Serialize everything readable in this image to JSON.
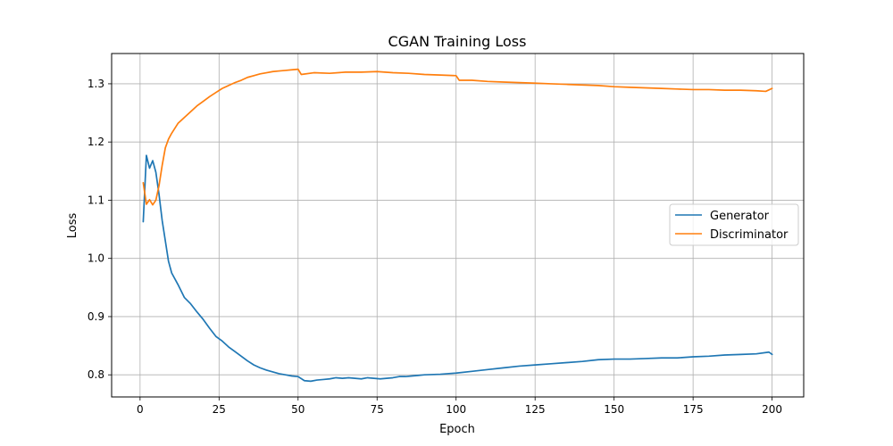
{
  "chart_data": {
    "type": "line",
    "title": "CGAN Training Loss",
    "xlabel": "Epoch",
    "ylabel": "Loss",
    "xlim": [
      -9,
      210
    ],
    "ylim": [
      0.762,
      1.352
    ],
    "xticks": [
      0,
      25,
      50,
      75,
      100,
      125,
      150,
      175,
      200
    ],
    "yticks": [
      0.8,
      0.9,
      1.0,
      1.1,
      1.2,
      1.3
    ],
    "grid": true,
    "legend_position": "center-right",
    "series": [
      {
        "name": "Generator",
        "color": "#1f77b4",
        "x": [
          1,
          2,
          3,
          4,
          5,
          6,
          7,
          8,
          9,
          10,
          12,
          14,
          16,
          18,
          20,
          22,
          24,
          26,
          28,
          30,
          32,
          34,
          36,
          38,
          40,
          42,
          44,
          46,
          48,
          50,
          52,
          54,
          56,
          58,
          60,
          62,
          64,
          66,
          68,
          70,
          72,
          74,
          76,
          78,
          80,
          82,
          84,
          86,
          88,
          90,
          95,
          100,
          105,
          110,
          115,
          120,
          125,
          130,
          135,
          140,
          145,
          150,
          155,
          160,
          165,
          170,
          175,
          180,
          185,
          190,
          195,
          199,
          200
        ],
        "y": [
          1.063,
          1.177,
          1.155,
          1.168,
          1.148,
          1.11,
          1.065,
          1.03,
          0.995,
          0.975,
          0.955,
          0.933,
          0.922,
          0.908,
          0.895,
          0.88,
          0.866,
          0.858,
          0.848,
          0.84,
          0.832,
          0.824,
          0.817,
          0.812,
          0.808,
          0.805,
          0.802,
          0.8,
          0.798,
          0.797,
          0.79,
          0.789,
          0.791,
          0.792,
          0.793,
          0.795,
          0.794,
          0.795,
          0.794,
          0.793,
          0.795,
          0.794,
          0.793,
          0.794,
          0.795,
          0.797,
          0.797,
          0.798,
          0.799,
          0.8,
          0.801,
          0.803,
          0.806,
          0.809,
          0.812,
          0.815,
          0.817,
          0.819,
          0.821,
          0.823,
          0.826,
          0.827,
          0.827,
          0.828,
          0.829,
          0.829,
          0.831,
          0.832,
          0.834,
          0.835,
          0.836,
          0.839,
          0.835
        ]
      },
      {
        "name": "Discriminator",
        "color": "#ff7f0e",
        "x": [
          1,
          2,
          3,
          4,
          5,
          6,
          7,
          8,
          9,
          10,
          12,
          14,
          16,
          18,
          20,
          22,
          24,
          26,
          28,
          30,
          32,
          34,
          36,
          38,
          40,
          42,
          44,
          46,
          48,
          50,
          51,
          55,
          60,
          65,
          70,
          75,
          80,
          85,
          90,
          95,
          100,
          101,
          105,
          110,
          115,
          120,
          125,
          130,
          135,
          140,
          145,
          150,
          155,
          160,
          165,
          170,
          175,
          180,
          185,
          190,
          195,
          198,
          200
        ],
        "y": [
          1.13,
          1.093,
          1.101,
          1.092,
          1.1,
          1.125,
          1.16,
          1.19,
          1.205,
          1.215,
          1.232,
          1.242,
          1.252,
          1.262,
          1.27,
          1.278,
          1.285,
          1.292,
          1.297,
          1.302,
          1.306,
          1.311,
          1.314,
          1.317,
          1.319,
          1.321,
          1.322,
          1.323,
          1.324,
          1.325,
          1.316,
          1.319,
          1.318,
          1.32,
          1.32,
          1.321,
          1.319,
          1.318,
          1.316,
          1.315,
          1.314,
          1.306,
          1.306,
          1.304,
          1.303,
          1.302,
          1.301,
          1.3,
          1.299,
          1.298,
          1.297,
          1.295,
          1.294,
          1.293,
          1.292,
          1.291,
          1.29,
          1.29,
          1.289,
          1.289,
          1.288,
          1.287,
          1.292
        ]
      }
    ]
  }
}
